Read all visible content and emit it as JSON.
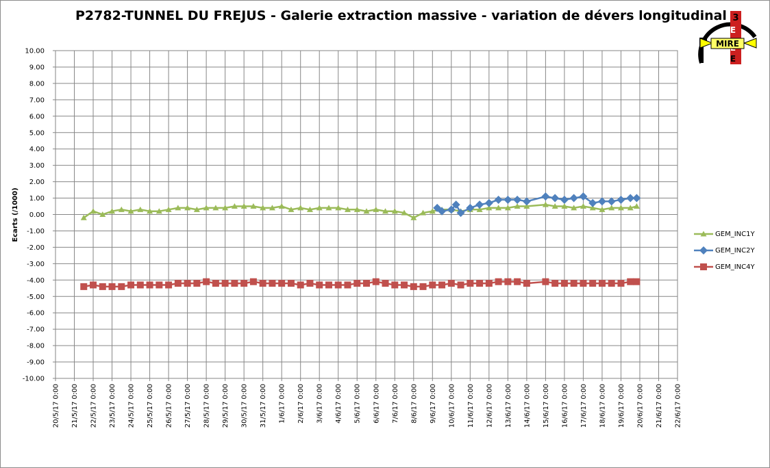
{
  "chart_data": {
    "type": "line",
    "title": "P2782-TUNNEL DU FREJUS - Galerie extraction massive - variation de dévers longitudinal",
    "ylabel": "Ecarts (/1000)",
    "xlabel": "",
    "ylim": [
      -10,
      10
    ],
    "y_ticks": [
      "10.00",
      "9.00",
      "8.00",
      "7.00",
      "6.00",
      "5.00",
      "4.00",
      "3.00",
      "2.00",
      "1.00",
      "0.00",
      "-1.00",
      "-2.00",
      "-3.00",
      "-4.00",
      "-5.00",
      "-6.00",
      "-7.00",
      "-8.00",
      "-9.00",
      "-10.00"
    ],
    "x_ticks": [
      "20/5/17 0:00",
      "21/5/17 0:00",
      "22/5/17 0:00",
      "23/5/17 0:00",
      "24/5/17 0:00",
      "25/5/17 0:00",
      "26/5/17 0:00",
      "27/5/17 0:00",
      "28/5/17 0:00",
      "29/5/17 0:00",
      "30/5/17 0:00",
      "31/5/17 0:00",
      "1/6/17 0:00",
      "2/6/17 0:00",
      "3/6/17 0:00",
      "4/6/17 0:00",
      "5/6/17 0:00",
      "6/6/17 0:00",
      "7/6/17 0:00",
      "8/6/17 0:00",
      "9/6/17 0:00",
      "10/6/17 0:00",
      "11/6/17 0:00",
      "12/6/17 0:00",
      "13/6/17 0:00",
      "14/6/17 0:00",
      "15/6/17 0:00",
      "16/6/17 0:00",
      "17/6/17 0:00",
      "18/6/17 0:00",
      "19/6/17 0:00",
      "20/6/17 0:00",
      "21/6/17 0:00",
      "22/6/17 0:00"
    ],
    "x_start": "2017-05-20",
    "x_end": "2017-06-22",
    "grid": true,
    "legend_position": "right",
    "series": [
      {
        "name": "GEM_INC1Y",
        "color": "#9bbb59",
        "marker": "triangle",
        "points": [
          [
            "2017-05-21T12:00",
            -0.2
          ],
          [
            "2017-05-22T00:00",
            0.2
          ],
          [
            "2017-05-22T12:00",
            0.0
          ],
          [
            "2017-05-23T00:00",
            0.2
          ],
          [
            "2017-05-23T12:00",
            0.3
          ],
          [
            "2017-05-24T00:00",
            0.2
          ],
          [
            "2017-05-24T12:00",
            0.3
          ],
          [
            "2017-05-25T00:00",
            0.2
          ],
          [
            "2017-05-25T12:00",
            0.2
          ],
          [
            "2017-05-26T00:00",
            0.3
          ],
          [
            "2017-05-26T12:00",
            0.4
          ],
          [
            "2017-05-27T00:00",
            0.4
          ],
          [
            "2017-05-27T12:00",
            0.3
          ],
          [
            "2017-05-28T00:00",
            0.4
          ],
          [
            "2017-05-28T12:00",
            0.4
          ],
          [
            "2017-05-29T00:00",
            0.4
          ],
          [
            "2017-05-29T12:00",
            0.5
          ],
          [
            "2017-05-30T00:00",
            0.5
          ],
          [
            "2017-05-30T12:00",
            0.5
          ],
          [
            "2017-05-31T00:00",
            0.4
          ],
          [
            "2017-05-31T12:00",
            0.4
          ],
          [
            "2017-06-01T00:00",
            0.5
          ],
          [
            "2017-06-01T12:00",
            0.3
          ],
          [
            "2017-06-02T00:00",
            0.4
          ],
          [
            "2017-06-02T12:00",
            0.3
          ],
          [
            "2017-06-03T00:00",
            0.4
          ],
          [
            "2017-06-03T12:00",
            0.4
          ],
          [
            "2017-06-04T00:00",
            0.4
          ],
          [
            "2017-06-04T12:00",
            0.3
          ],
          [
            "2017-06-05T00:00",
            0.3
          ],
          [
            "2017-06-05T12:00",
            0.2
          ],
          [
            "2017-06-06T00:00",
            0.3
          ],
          [
            "2017-06-06T12:00",
            0.2
          ],
          [
            "2017-06-07T00:00",
            0.2
          ],
          [
            "2017-06-07T12:00",
            0.1
          ],
          [
            "2017-06-08T00:00",
            -0.2
          ],
          [
            "2017-06-08T12:00",
            0.1
          ],
          [
            "2017-06-09T00:00",
            0.2
          ],
          [
            "2017-06-09T12:00",
            0.3
          ],
          [
            "2017-06-10T00:00",
            0.3
          ],
          [
            "2017-06-10T12:00",
            0.2
          ],
          [
            "2017-06-11T00:00",
            0.3
          ],
          [
            "2017-06-11T12:00",
            0.3
          ],
          [
            "2017-06-12T00:00",
            0.4
          ],
          [
            "2017-06-12T12:00",
            0.4
          ],
          [
            "2017-06-13T00:00",
            0.4
          ],
          [
            "2017-06-13T12:00",
            0.5
          ],
          [
            "2017-06-14T00:00",
            0.5
          ],
          [
            "2017-06-15T00:00",
            0.6
          ],
          [
            "2017-06-15T12:00",
            0.5
          ],
          [
            "2017-06-16T00:00",
            0.5
          ],
          [
            "2017-06-16T12:00",
            0.4
          ],
          [
            "2017-06-17T00:00",
            0.5
          ],
          [
            "2017-06-17T12:00",
            0.4
          ],
          [
            "2017-06-18T00:00",
            0.3
          ],
          [
            "2017-06-18T12:00",
            0.4
          ],
          [
            "2017-06-19T00:00",
            0.4
          ],
          [
            "2017-06-19T12:00",
            0.4
          ],
          [
            "2017-06-19T20:00",
            0.5
          ]
        ]
      },
      {
        "name": "GEM_INC2Y",
        "color": "#4f81bd",
        "marker": "diamond",
        "points": [
          [
            "2017-06-09T06:00",
            0.4
          ],
          [
            "2017-06-09T12:00",
            0.2
          ],
          [
            "2017-06-10T00:00",
            0.3
          ],
          [
            "2017-06-10T06:00",
            0.6
          ],
          [
            "2017-06-10T12:00",
            0.1
          ],
          [
            "2017-06-11T00:00",
            0.4
          ],
          [
            "2017-06-11T12:00",
            0.6
          ],
          [
            "2017-06-12T00:00",
            0.7
          ],
          [
            "2017-06-12T12:00",
            0.9
          ],
          [
            "2017-06-13T00:00",
            0.9
          ],
          [
            "2017-06-13T12:00",
            0.9
          ],
          [
            "2017-06-14T00:00",
            0.8
          ],
          [
            "2017-06-15T00:00",
            1.1
          ],
          [
            "2017-06-15T12:00",
            1.0
          ],
          [
            "2017-06-16T00:00",
            0.9
          ],
          [
            "2017-06-16T12:00",
            1.0
          ],
          [
            "2017-06-17T00:00",
            1.1
          ],
          [
            "2017-06-17T12:00",
            0.7
          ],
          [
            "2017-06-18T00:00",
            0.8
          ],
          [
            "2017-06-18T12:00",
            0.8
          ],
          [
            "2017-06-19T00:00",
            0.9
          ],
          [
            "2017-06-19T12:00",
            1.0
          ],
          [
            "2017-06-19T20:00",
            1.0
          ]
        ]
      },
      {
        "name": "GEM_INC4Y",
        "color": "#c0504d",
        "marker": "square",
        "points": [
          [
            "2017-05-21T12:00",
            -4.4
          ],
          [
            "2017-05-22T00:00",
            -4.3
          ],
          [
            "2017-05-22T12:00",
            -4.4
          ],
          [
            "2017-05-23T00:00",
            -4.4
          ],
          [
            "2017-05-23T12:00",
            -4.4
          ],
          [
            "2017-05-24T00:00",
            -4.3
          ],
          [
            "2017-05-24T12:00",
            -4.3
          ],
          [
            "2017-05-25T00:00",
            -4.3
          ],
          [
            "2017-05-25T12:00",
            -4.3
          ],
          [
            "2017-05-26T00:00",
            -4.3
          ],
          [
            "2017-05-26T12:00",
            -4.2
          ],
          [
            "2017-05-27T00:00",
            -4.2
          ],
          [
            "2017-05-27T12:00",
            -4.2
          ],
          [
            "2017-05-28T00:00",
            -4.1
          ],
          [
            "2017-05-28T12:00",
            -4.2
          ],
          [
            "2017-05-29T00:00",
            -4.2
          ],
          [
            "2017-05-29T12:00",
            -4.2
          ],
          [
            "2017-05-30T00:00",
            -4.2
          ],
          [
            "2017-05-30T12:00",
            -4.1
          ],
          [
            "2017-05-31T00:00",
            -4.2
          ],
          [
            "2017-05-31T12:00",
            -4.2
          ],
          [
            "2017-06-01T00:00",
            -4.2
          ],
          [
            "2017-06-01T12:00",
            -4.2
          ],
          [
            "2017-06-02T00:00",
            -4.3
          ],
          [
            "2017-06-02T12:00",
            -4.2
          ],
          [
            "2017-06-03T00:00",
            -4.3
          ],
          [
            "2017-06-03T12:00",
            -4.3
          ],
          [
            "2017-06-04T00:00",
            -4.3
          ],
          [
            "2017-06-04T12:00",
            -4.3
          ],
          [
            "2017-06-05T00:00",
            -4.2
          ],
          [
            "2017-06-05T12:00",
            -4.2
          ],
          [
            "2017-06-06T00:00",
            -4.1
          ],
          [
            "2017-06-06T12:00",
            -4.2
          ],
          [
            "2017-06-07T00:00",
            -4.3
          ],
          [
            "2017-06-07T12:00",
            -4.3
          ],
          [
            "2017-06-08T00:00",
            -4.4
          ],
          [
            "2017-06-08T12:00",
            -4.4
          ],
          [
            "2017-06-09T00:00",
            -4.3
          ],
          [
            "2017-06-09T12:00",
            -4.3
          ],
          [
            "2017-06-10T00:00",
            -4.2
          ],
          [
            "2017-06-10T12:00",
            -4.3
          ],
          [
            "2017-06-11T00:00",
            -4.2
          ],
          [
            "2017-06-11T12:00",
            -4.2
          ],
          [
            "2017-06-12T00:00",
            -4.2
          ],
          [
            "2017-06-12T12:00",
            -4.1
          ],
          [
            "2017-06-13T00:00",
            -4.1
          ],
          [
            "2017-06-13T12:00",
            -4.1
          ],
          [
            "2017-06-14T00:00",
            -4.2
          ],
          [
            "2017-06-15T00:00",
            -4.1
          ],
          [
            "2017-06-15T12:00",
            -4.2
          ],
          [
            "2017-06-16T00:00",
            -4.2
          ],
          [
            "2017-06-16T12:00",
            -4.2
          ],
          [
            "2017-06-17T00:00",
            -4.2
          ],
          [
            "2017-06-17T12:00",
            -4.2
          ],
          [
            "2017-06-18T00:00",
            -4.2
          ],
          [
            "2017-06-18T12:00",
            -4.2
          ],
          [
            "2017-06-19T00:00",
            -4.2
          ],
          [
            "2017-06-19T12:00",
            -4.1
          ],
          [
            "2017-06-19T20:00",
            -4.1
          ]
        ]
      }
    ]
  },
  "logo": {
    "text_main": "MIRE",
    "text_side": [
      "3",
      "E",
      "E",
      "E"
    ]
  }
}
